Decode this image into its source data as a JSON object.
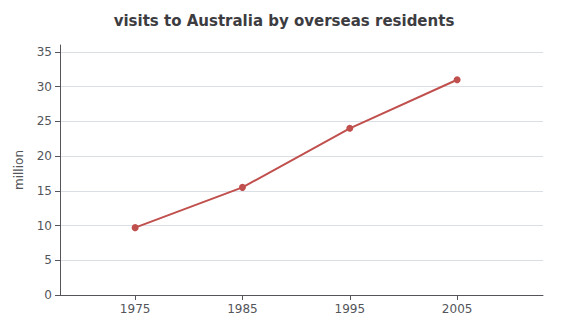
{
  "chart_data": {
    "type": "line",
    "title": "visits to Australia by overseas residents",
    "x": [
      1975,
      1985,
      1995,
      2005
    ],
    "values": [
      9.7,
      15.5,
      24.0,
      31.0
    ],
    "color": "#c0504d",
    "marker": "circle",
    "xlim": [
      1968,
      2013
    ],
    "xticks": [
      1975,
      1985,
      1995,
      2005
    ],
    "ylim": [
      0,
      36
    ],
    "yticks": [
      0,
      5,
      10,
      15,
      20,
      25,
      30,
      35
    ],
    "ylabel": "million",
    "grid": true
  }
}
